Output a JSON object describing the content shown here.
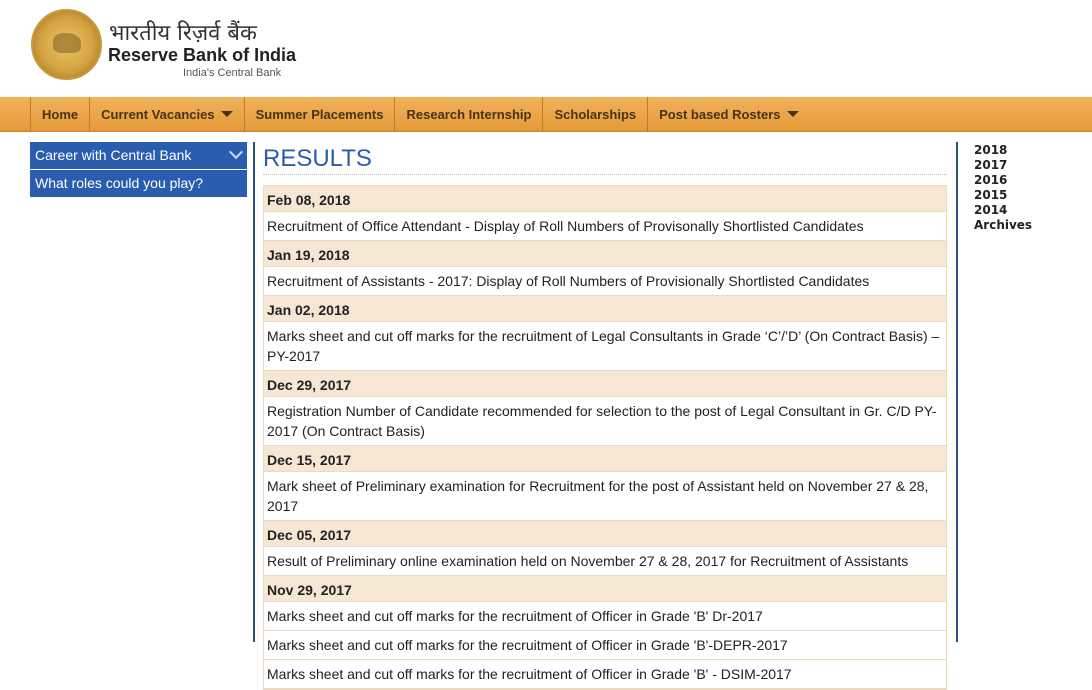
{
  "header": {
    "hindi_name": "भारतीय रिज़र्व बैंक",
    "name": "Reserve Bank of India",
    "tagline": "India's Central Bank"
  },
  "nav": [
    {
      "label": "Home"
    },
    {
      "label": "Current Vacancies",
      "dropdown": true
    },
    {
      "label": "Summer Placements"
    },
    {
      "label": "Research Internship"
    },
    {
      "label": "Scholarships"
    },
    {
      "label": "Post based Rosters",
      "dropdown": true
    }
  ],
  "sidebar": {
    "items": [
      {
        "label": "Career with Central Bank"
      },
      {
        "label": "What roles could you play?"
      }
    ]
  },
  "main": {
    "title": "RESULTS",
    "rows": [
      {
        "type": "date",
        "text": "Feb 08, 2018"
      },
      {
        "type": "item",
        "text": "Recruitment of Office Attendant - Display of Roll Numbers of Provisonally Shortlisted Candidates"
      },
      {
        "type": "date",
        "text": "Jan 19, 2018"
      },
      {
        "type": "item",
        "text": "Recruitment of Assistants - 2017: Display of Roll Numbers of Provisionally Shortlisted Candidates"
      },
      {
        "type": "date",
        "text": "Jan 02, 2018"
      },
      {
        "type": "item",
        "text": "Marks sheet and cut off marks for the recruitment of Legal Consultants in Grade ‘C’/’D’ (On Contract Basis) – PY-2017"
      },
      {
        "type": "date",
        "text": "Dec 29, 2017"
      },
      {
        "type": "item",
        "text": "Registration Number of Candidate recommended for selection to the post of Legal Consultant in Gr. C/D PY-2017 (On Contract Basis)"
      },
      {
        "type": "date",
        "text": "Dec 15, 2017"
      },
      {
        "type": "item",
        "text": "Mark sheet of Preliminary examination for Recruitment for the post of Assistant held on November 27 & 28, 2017"
      },
      {
        "type": "date",
        "text": "Dec 05, 2017"
      },
      {
        "type": "item",
        "text": "Result of Preliminary online examination held on November 27 & 28, 2017 for Recruitment of Assistants"
      },
      {
        "type": "date",
        "text": "Nov 29, 2017"
      },
      {
        "type": "item",
        "text": "Marks sheet and cut off marks for the recruitment of Officer in Grade 'B' Dr-2017"
      },
      {
        "type": "item",
        "text": "Marks sheet and cut off marks for the recruitment of Officer in Grade 'B'-DEPR-2017"
      },
      {
        "type": "item",
        "text": "Marks sheet and cut off marks for the recruitment of Officer in Grade 'B' - DSIM-2017"
      }
    ]
  },
  "years": [
    "2018",
    "2017",
    "2016",
    "2015",
    "2014",
    "Archives"
  ]
}
